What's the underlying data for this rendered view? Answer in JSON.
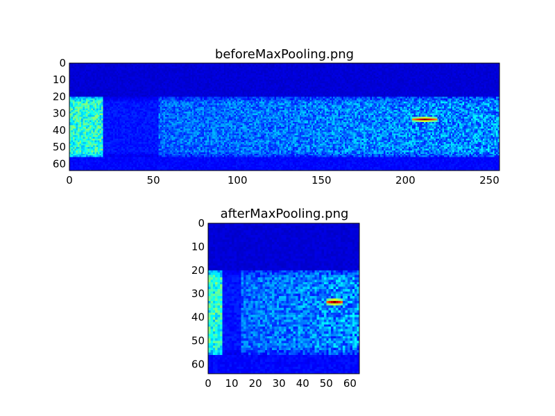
{
  "figure": {
    "background": "#ffffff"
  },
  "chart_data": [
    {
      "type": "heatmap",
      "title": "beforeMaxPooling.png",
      "xlabel": "",
      "ylabel": "",
      "xlim": [
        0,
        256
      ],
      "ylim": [
        64,
        0
      ],
      "y_inverted": true,
      "grid": false,
      "colormap": "jet",
      "value_range": [
        0,
        1
      ],
      "xticks": [
        0,
        50,
        100,
        150,
        200,
        250
      ],
      "yticks": [
        0,
        10,
        20,
        30,
        40,
        50,
        60
      ],
      "rows": 64,
      "cols": 256,
      "features": {
        "quiet_band_rows": [
          0,
          19
        ],
        "active_band_rows": [
          20,
          55
        ],
        "bright_left_strip_cols": [
          0,
          19
        ],
        "dim_gap_cols": [
          20,
          52
        ],
        "hot_spot": {
          "col_range": [
            204,
            218
          ],
          "row": 33,
          "peak_value": 1.0
        }
      }
    },
    {
      "type": "heatmap",
      "title": "afterMaxPooling.png",
      "xlabel": "",
      "ylabel": "",
      "xlim": [
        0,
        64
      ],
      "ylim": [
        64,
        0
      ],
      "y_inverted": true,
      "grid": false,
      "colormap": "jet",
      "value_range": [
        0,
        1
      ],
      "xticks": [
        0,
        10,
        20,
        30,
        40,
        50,
        60
      ],
      "yticks": [
        0,
        10,
        20,
        30,
        40,
        50,
        60
      ],
      "rows": 64,
      "cols": 64,
      "features": {
        "quiet_band_rows": [
          0,
          19
        ],
        "active_band_rows": [
          20,
          55
        ],
        "bright_left_strip_cols": [
          0,
          5
        ],
        "dim_gap_cols": [
          6,
          13
        ],
        "hot_spot": {
          "col_range": [
            50,
            56
          ],
          "row": 33,
          "peak_value": 1.0
        }
      }
    }
  ]
}
